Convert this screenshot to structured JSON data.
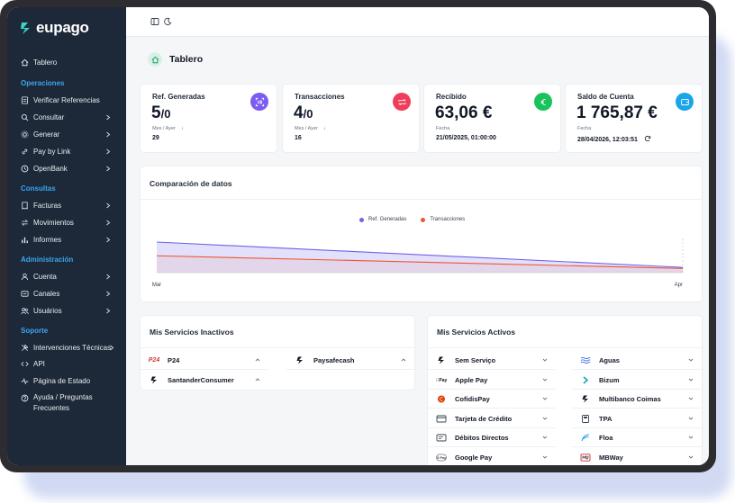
{
  "brand": {
    "name": "eupago",
    "accent": "#3ad6c4"
  },
  "sidebar": {
    "top_item": {
      "label": "Tablero",
      "icon": "home-icon"
    },
    "sections": [
      {
        "title": "Operaciones",
        "items": [
          {
            "label": "Verificar Referencias",
            "icon": "checklist-icon",
            "chevron": false
          },
          {
            "label": "Consultar",
            "icon": "search-icon",
            "chevron": true
          },
          {
            "label": "Generar",
            "icon": "gear-icon",
            "chevron": true
          },
          {
            "label": "Pay by Link",
            "icon": "link-icon",
            "chevron": true
          },
          {
            "label": "OpenBank",
            "icon": "clock-icon",
            "chevron": true
          }
        ]
      },
      {
        "title": "Consultas",
        "items": [
          {
            "label": "Facturas",
            "icon": "invoice-icon",
            "chevron": true
          },
          {
            "label": "Movimientos",
            "icon": "swap-icon",
            "chevron": true
          },
          {
            "label": "Informes",
            "icon": "bar-chart-icon",
            "chevron": true
          }
        ]
      },
      {
        "title": "Administración",
        "items": [
          {
            "label": "Cuenta",
            "icon": "user-icon",
            "chevron": true
          },
          {
            "label": "Canales",
            "icon": "channels-icon",
            "chevron": true
          },
          {
            "label": "Usuários",
            "icon": "users-icon",
            "chevron": true
          }
        ]
      },
      {
        "title": "Soporte",
        "items": [
          {
            "label": "Intervenciones Técnicas",
            "icon": "tools-icon",
            "chevron": true
          },
          {
            "label": "API",
            "icon": "code-icon",
            "chevron": false
          },
          {
            "label": "Página de Estado",
            "icon": "pulse-icon",
            "chevron": false
          },
          {
            "label": "Ayuda / Preguntas Frecuentes",
            "icon": "help-icon",
            "chevron": false
          }
        ]
      }
    ]
  },
  "page": {
    "title": "Tablero"
  },
  "kpis": [
    {
      "title": "Ref. Generadas",
      "value": "5",
      "value_suffix": "/0",
      "sub_label": "Mes / Ayer",
      "sub_value": "29",
      "badge_color": "#7c5cf0",
      "icon": "barcode-icon",
      "trend": "down"
    },
    {
      "title": "Transacciones",
      "value": "4",
      "value_suffix": "/0",
      "sub_label": "Mes / Ayer",
      "sub_value": "16",
      "badge_color": "#ef3e5c",
      "icon": "exchange-icon",
      "trend": "down"
    },
    {
      "title": "Recibido",
      "value": "63,06 €",
      "value_suffix": "",
      "sub_label": "Fecha",
      "sub_value": "21/05/2025, 01:00:00",
      "badge_color": "#18c35c",
      "icon": "euro-icon",
      "trend": ""
    },
    {
      "title": "Saldo de Cuenta",
      "value": "1 765,87 €",
      "value_suffix": "",
      "sub_label": "Fecha",
      "sub_value": "28/04/2026, 12:03:51",
      "badge_color": "#1aa5e8",
      "icon": "wallet-icon",
      "trend": ""
    }
  ],
  "chart_data": {
    "type": "area",
    "title": "Comparación de datos",
    "categories": [
      "Mar",
      "Apr"
    ],
    "series": [
      {
        "name": "Ref. Generadas",
        "color": "#6f63e8",
        "values": [
          29,
          5
        ]
      },
      {
        "name": "Transacciones",
        "color": "#f0552f",
        "values": [
          16,
          4
        ]
      }
    ],
    "legend": "top-center",
    "grid": false
  },
  "inactive_services": {
    "title": "Mis Servicios Inactivos",
    "items": [
      {
        "label": "P24",
        "icon": "p24-logo-icon"
      },
      {
        "label": "Paysafecash",
        "icon": "eupago-mark-icon"
      },
      {
        "label": "SantanderConsumer",
        "icon": "eupago-mark-icon"
      }
    ]
  },
  "active_services": {
    "title": "Mis Servicios Activos",
    "items": [
      {
        "label": "Sem Serviço",
        "icon": "eupago-mark-icon"
      },
      {
        "label": "Aguas",
        "icon": "waves-icon"
      },
      {
        "label": "Apple Pay",
        "icon": "apple-pay-icon"
      },
      {
        "label": "Bizum",
        "icon": "bizum-icon"
      },
      {
        "label": "CofidisPay",
        "icon": "cofidis-icon"
      },
      {
        "label": "Multibanco Coimas",
        "icon": "eupago-mark-icon"
      },
      {
        "label": "Tarjeta de Crédito",
        "icon": "credit-card-icon"
      },
      {
        "label": "TPA",
        "icon": "terminal-icon"
      },
      {
        "label": "Débitos Directos",
        "icon": "direct-debit-icon"
      },
      {
        "label": "Floa",
        "icon": "floa-icon"
      },
      {
        "label": "Google Pay",
        "icon": "google-pay-icon"
      },
      {
        "label": "MBWay",
        "icon": "mbway-icon"
      }
    ]
  }
}
